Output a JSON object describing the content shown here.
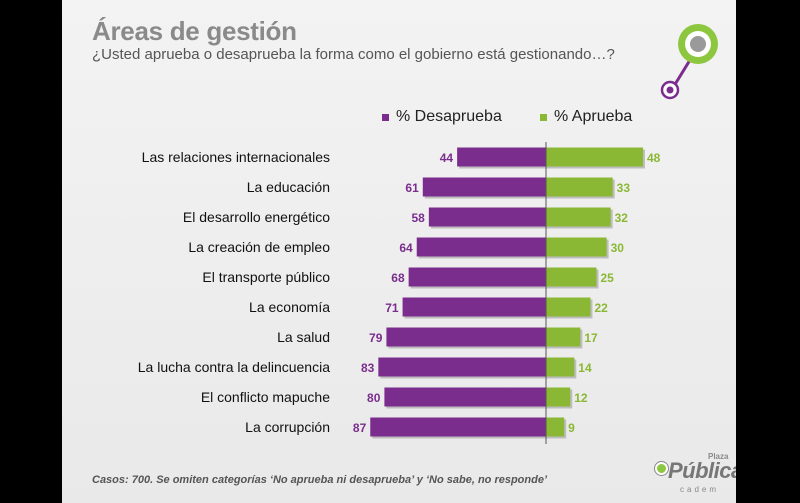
{
  "title": "Áreas de gestión",
  "subtitle": "¿Usted aprueba o desaprueba la forma como el gobierno está gestionando…?",
  "footnote": "Casos: 700. Se omiten categorías ‘No aprueba ni desaprueba’ y ‘No sabe, no responde’",
  "brand": {
    "main": "Pública",
    "small": "Plaza",
    "sub": "cadem"
  },
  "colors": {
    "desaprueba": "#7b2d8e",
    "aprueba": "#8ab834",
    "accent_green": "#8dc63f",
    "title_gray": "#8a8a8a"
  },
  "chart_data": {
    "type": "bar",
    "orientation": "horizontal-diverging",
    "categories": [
      "Las relaciones internacionales",
      "La educación",
      "El desarrollo energético",
      "La creación de empleo",
      "El transporte público",
      "La economía",
      "La salud",
      "La lucha contra la delincuencia",
      "El conflicto mapuche",
      "La corrupción"
    ],
    "series": [
      {
        "name": "% Desaprueba",
        "values": [
          44,
          61,
          58,
          64,
          68,
          71,
          79,
          83,
          80,
          87
        ]
      },
      {
        "name": "% Aprueba",
        "values": [
          48,
          33,
          32,
          30,
          25,
          22,
          17,
          14,
          12,
          9
        ]
      }
    ],
    "legend_position": "top",
    "grid": false
  }
}
